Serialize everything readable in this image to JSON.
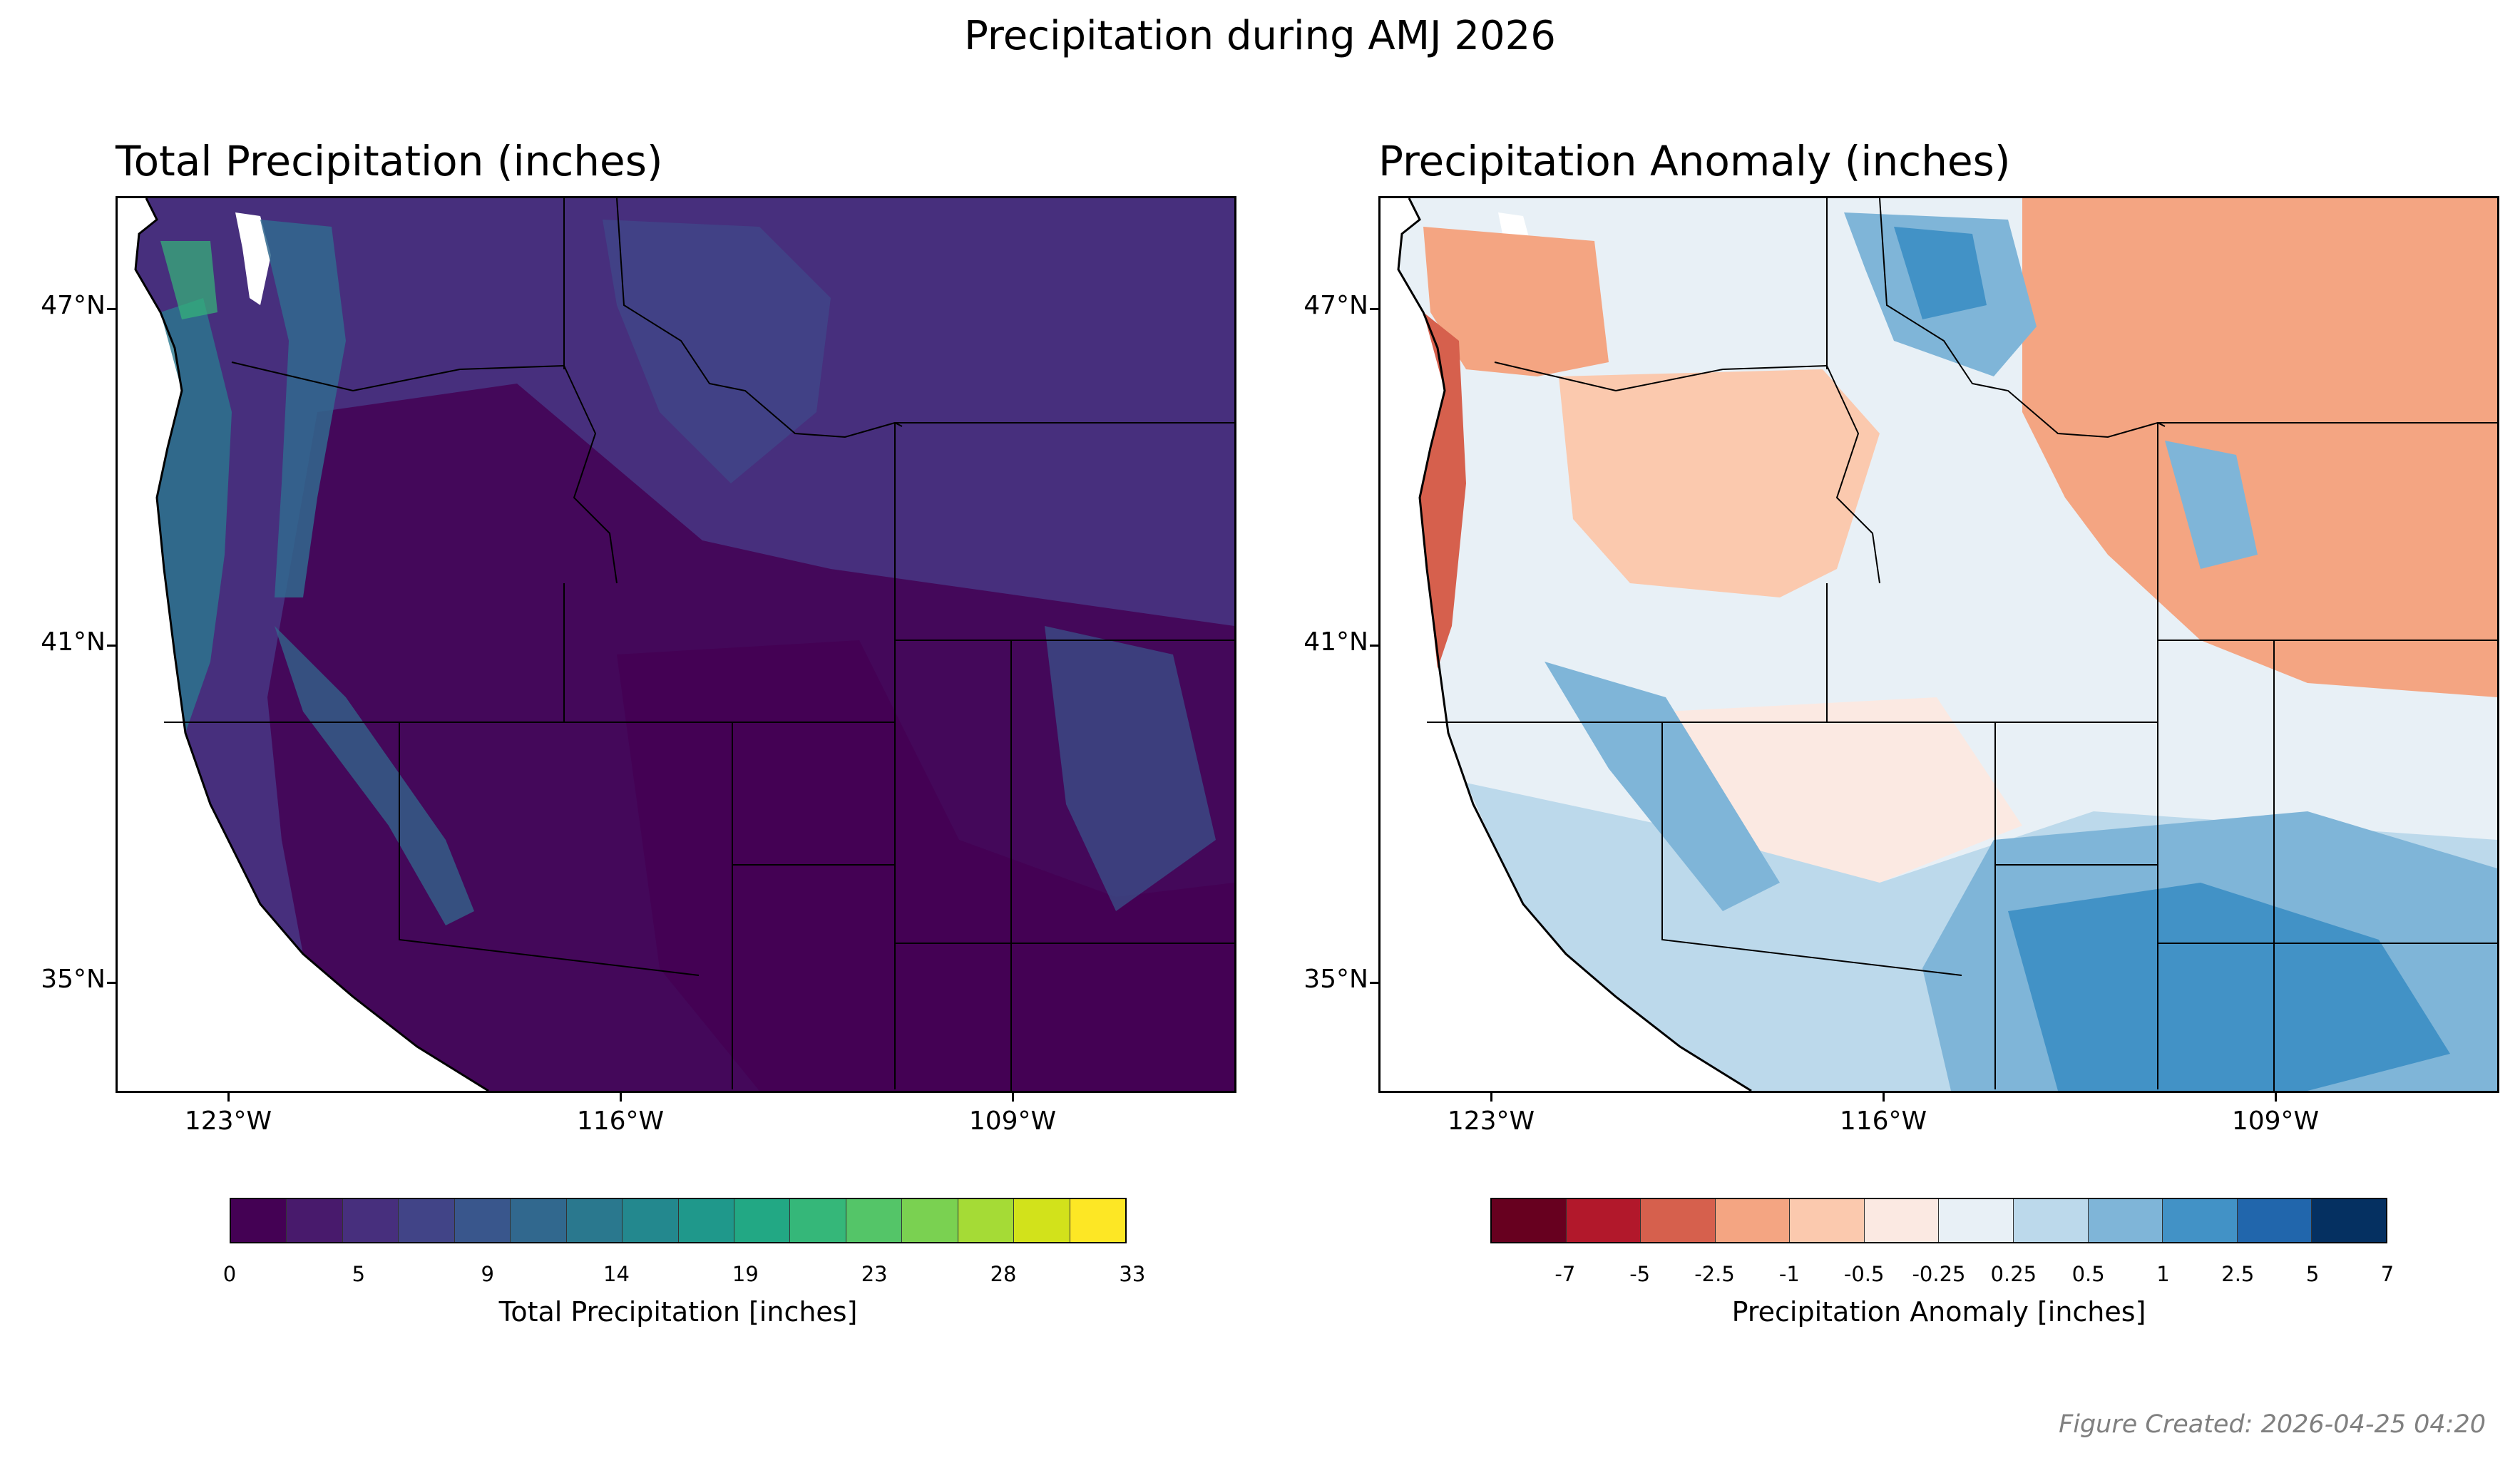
{
  "figure": {
    "title": "Precipitation during AMJ 2026",
    "credit": "Figure Created: 2026-04-25 04:20"
  },
  "panels": [
    {
      "title": "Total Precipitation (inches)",
      "lat_ticks": [
        "47°N",
        "41°N",
        "35°N"
      ],
      "lon_ticks": [
        "123°W",
        "116°W",
        "109°W"
      ],
      "colorbar": {
        "label": "Total Precipitation [inches]",
        "tick_labels": [
          "0",
          "5",
          "9",
          "14",
          "19",
          "23",
          "28",
          "33"
        ],
        "colors": [
          "#440154",
          "#481a6c",
          "#472f7d",
          "#414487",
          "#39568c",
          "#31688e",
          "#2a788e",
          "#23888e",
          "#1f988b",
          "#22a884",
          "#35b779",
          "#54c568",
          "#7ad151",
          "#a5db36",
          "#d2e21b",
          "#fde725"
        ]
      }
    },
    {
      "title": "Precipitation Anomaly (inches)",
      "lat_ticks": [
        "47°N",
        "41°N",
        "35°N"
      ],
      "lon_ticks": [
        "123°W",
        "116°W",
        "109°W"
      ],
      "colorbar": {
        "label": "Precipitation Anomaly [inches]",
        "tick_labels": [
          "-7",
          "-5",
          "-2.5",
          "-1",
          "-0.5",
          "-0.25",
          "0.25",
          "0.5",
          "1",
          "2.5",
          "5",
          "7"
        ],
        "colors": [
          "#67001f",
          "#b2182b",
          "#d6604d",
          "#f4a582",
          "#fbc9ae",
          "#fbe9e2",
          "#e8f0f6",
          "#bcd9eb",
          "#7fb5d8",
          "#4292c6",
          "#2166ac",
          "#053061"
        ]
      }
    }
  ]
}
